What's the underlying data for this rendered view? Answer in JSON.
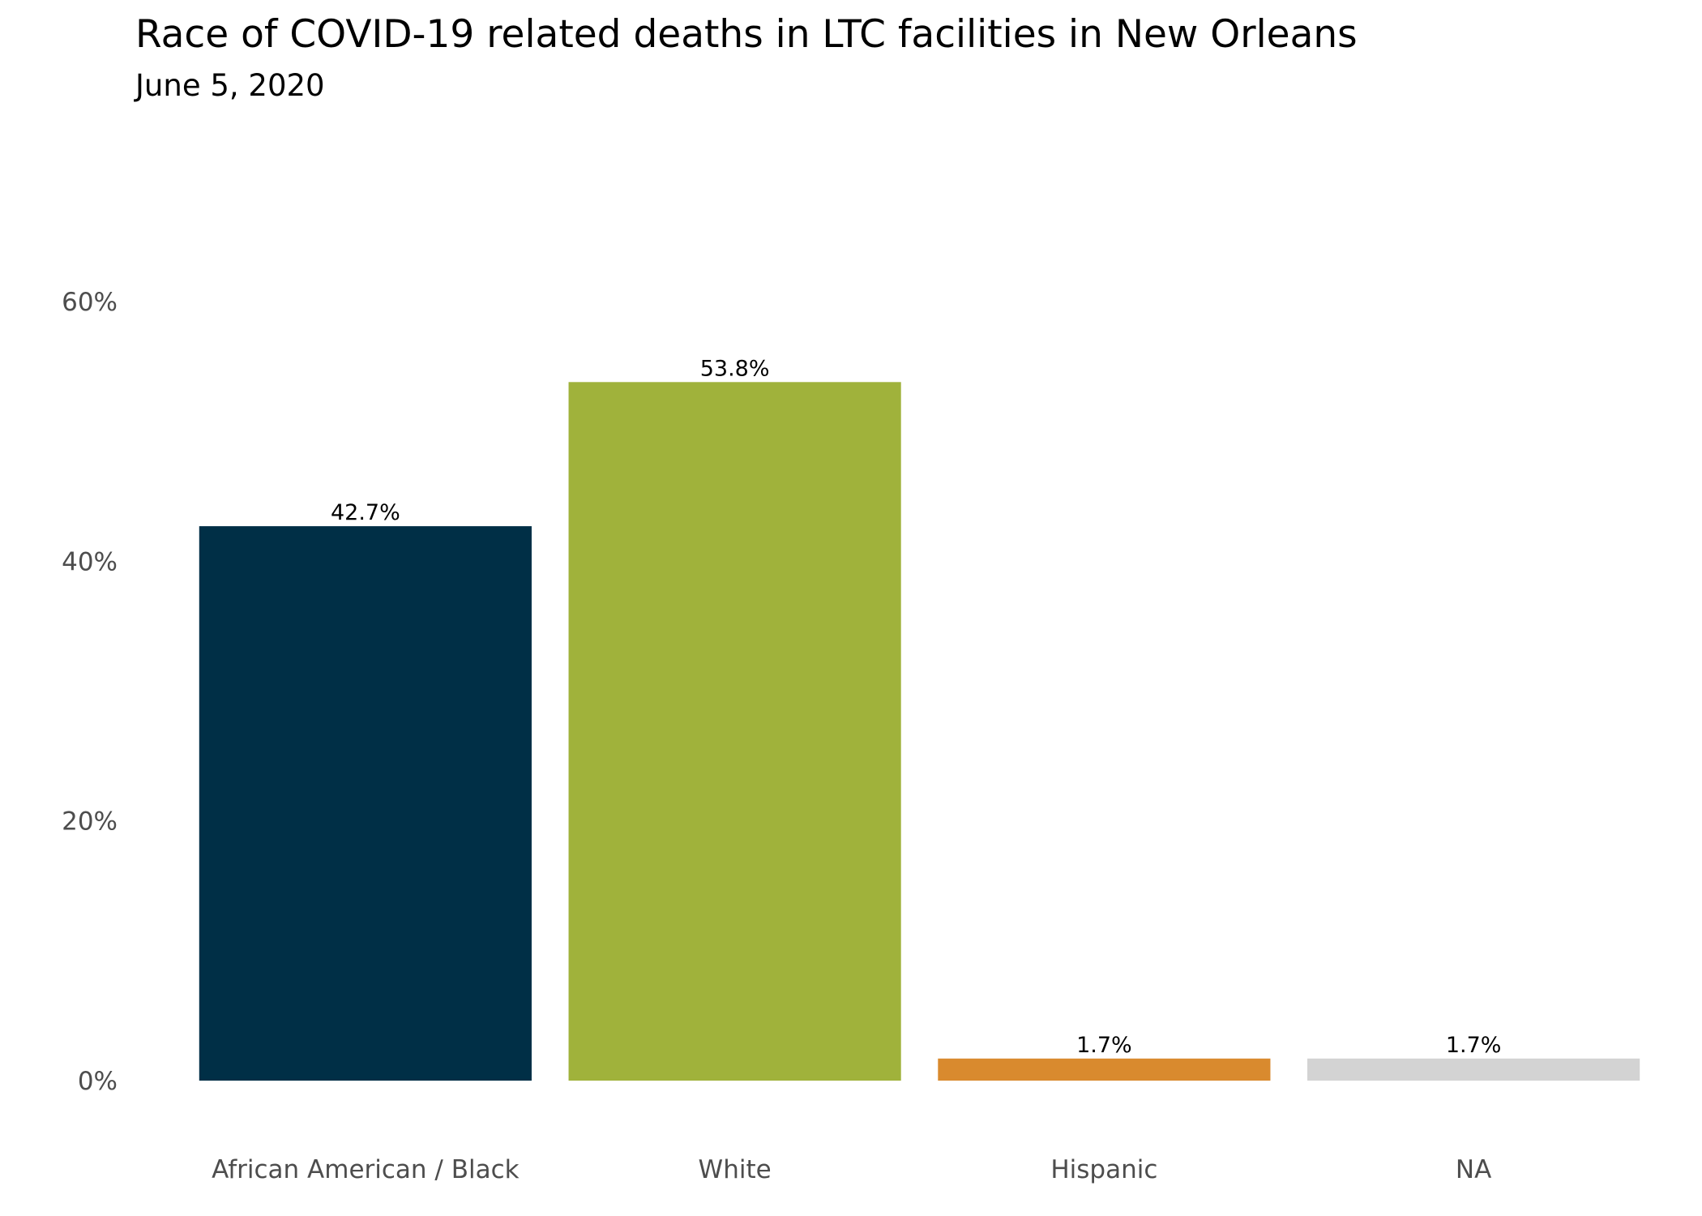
{
  "chart_data": {
    "type": "bar",
    "title": "Race of COVID-19 related deaths in LTC facilities in New Orleans",
    "subtitle": "June 5, 2020",
    "categories": [
      "African American / Black",
      "White",
      "Hispanic",
      "NA"
    ],
    "values": [
      42.7,
      53.8,
      1.7,
      1.7
    ],
    "value_labels": [
      "42.7%",
      "53.8%",
      "1.7%",
      "1.7%"
    ],
    "colors": [
      "#002f46",
      "#a0b23b",
      "#d98a2e",
      "#d3d3d3"
    ],
    "y_ticks": [
      {
        "value": 0,
        "label": "0%"
      },
      {
        "value": 20,
        "label": "20%"
      },
      {
        "value": 40,
        "label": "40%"
      },
      {
        "value": 60,
        "label": "60%"
      }
    ],
    "ylim": [
      0,
      60
    ],
    "xlabel": "",
    "ylabel": "",
    "grid": false,
    "legend": "none"
  }
}
